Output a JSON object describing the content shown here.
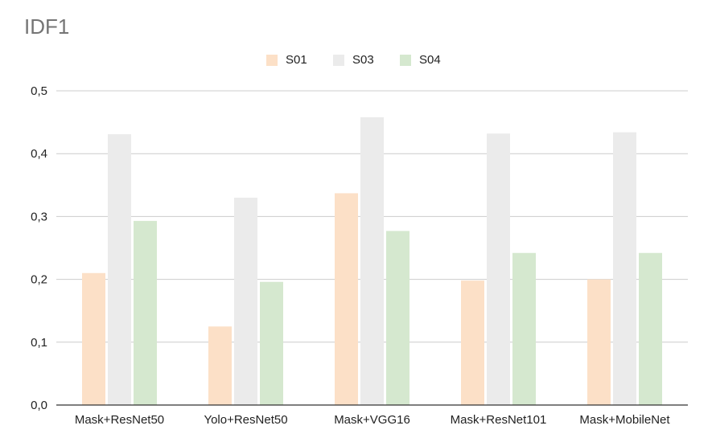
{
  "chart_data": {
    "type": "bar",
    "title": "IDF1",
    "xlabel": "",
    "ylabel": "",
    "categories": [
      "Mask+ResNet50",
      "Yolo+ResNet50",
      "Mask+VGG16",
      "Mask+ResNet101",
      "Mask+MobileNet"
    ],
    "series": [
      {
        "name": "S01",
        "color": "#fce0c7",
        "values": [
          0.21,
          0.125,
          0.337,
          0.198,
          0.2
        ]
      },
      {
        "name": "S03",
        "color": "#ebebeb",
        "values": [
          0.431,
          0.33,
          0.458,
          0.432,
          0.434
        ]
      },
      {
        "name": "S04",
        "color": "#d5e8cf",
        "values": [
          0.293,
          0.196,
          0.277,
          0.242,
          0.242
        ]
      }
    ],
    "ylim": [
      0,
      0.5
    ],
    "yticks": [
      "0,0",
      "0,1",
      "0,2",
      "0,3",
      "0,4",
      "0,5"
    ],
    "grid": true,
    "legend_position": "top-center"
  }
}
